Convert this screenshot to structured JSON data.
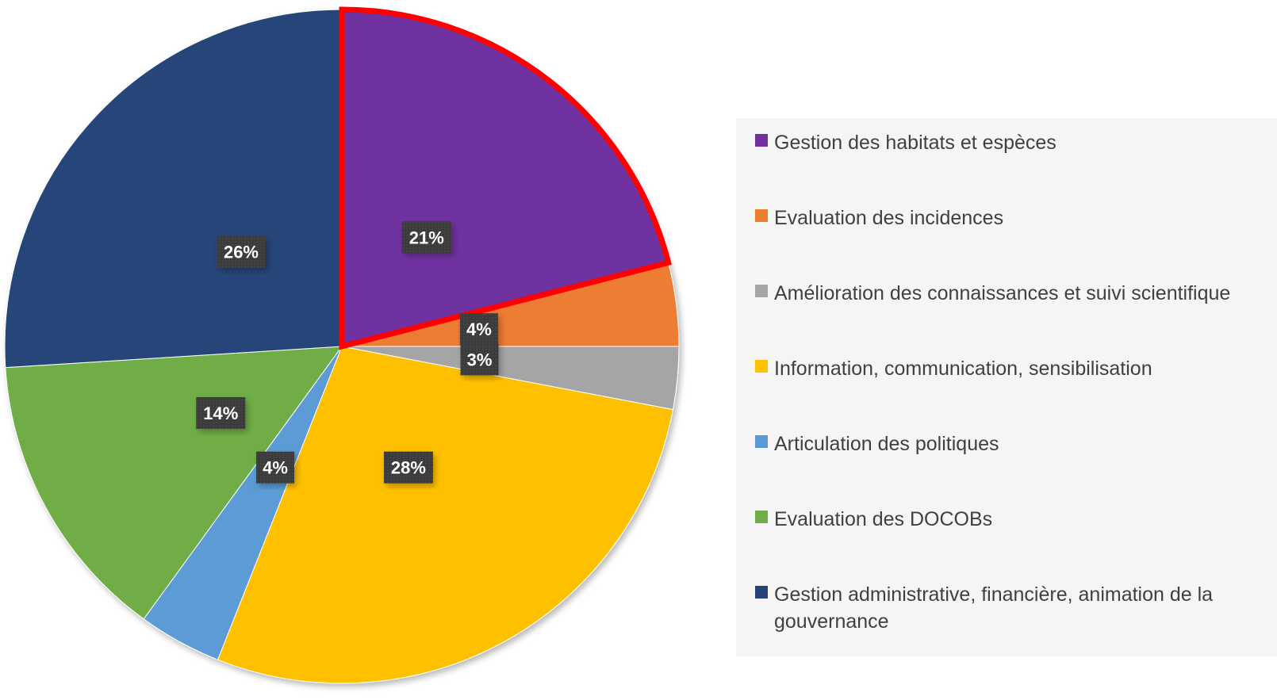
{
  "chart_data": {
    "type": "pie",
    "title": "",
    "start_angle_deg": 0,
    "direction": "clockwise",
    "highlighted_slice": "Gestion des habitats et espèces",
    "highlight_color": "#ff0000",
    "label_background": "#404040",
    "label_text_color": "#ffffff",
    "legend_position": "right",
    "slices": [
      {
        "label": "Gestion des habitats et espèces",
        "value": 21,
        "display": "21%",
        "color": "#7030a0"
      },
      {
        "label": "Evaluation des incidences",
        "value": 4,
        "display": "4%",
        "color": "#ed7d31"
      },
      {
        "label": "Amélioration des connaissances et suivi scientifique",
        "value": 3,
        "display": "3%",
        "color": "#a5a5a5"
      },
      {
        "label": "Information, communication, sensibilisation",
        "value": 28,
        "display": "28%",
        "color": "#ffc000"
      },
      {
        "label": "Articulation des politiques",
        "value": 4,
        "display": "4%",
        "color": "#5b9bd5"
      },
      {
        "label": "Evaluation des DOCOBs",
        "value": 14,
        "display": "14%",
        "color": "#70ad47"
      },
      {
        "label": "Gestion administrative, financière, animation de la gouvernance",
        "value": 26,
        "display": "26%",
        "color": "#264478"
      }
    ]
  },
  "legend": {
    "items": [
      {
        "label": "Gestion des habitats et espèces",
        "color": "#7030a0"
      },
      {
        "label": "Evaluation des incidences",
        "color": "#ed7d31"
      },
      {
        "label": "Amélioration des connaissances et suivi scientifique",
        "color": "#a5a5a5"
      },
      {
        "label": "Information, communication, sensibilisation",
        "color": "#ffc000"
      },
      {
        "label": "Articulation des politiques",
        "color": "#5b9bd5"
      },
      {
        "label": "Evaluation des DOCOBs",
        "color": "#70ad47"
      },
      {
        "label": "Gestion administrative, financière, animation de la gouvernance",
        "color": "#264478"
      }
    ]
  }
}
